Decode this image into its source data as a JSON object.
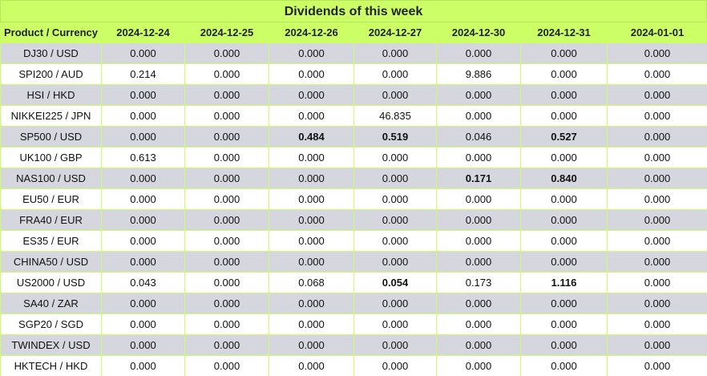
{
  "title": "Dividends of this week",
  "headers": [
    "Product / Currency",
    "2024-12-24",
    "2024-12-25",
    "2024-12-26",
    "2024-12-27",
    "2024-12-30",
    "2024-12-31",
    "2024-01-01"
  ],
  "rows": [
    {
      "product": "DJ30 / USD",
      "values": [
        "0.000",
        "0.000",
        "0.000",
        "0.000",
        "0.000",
        "0.000",
        "0.000"
      ],
      "bold": []
    },
    {
      "product": "SPI200 / AUD",
      "values": [
        "0.214",
        "0.000",
        "0.000",
        "0.000",
        "9.886",
        "0.000",
        "0.000"
      ],
      "bold": []
    },
    {
      "product": "HSI / HKD",
      "values": [
        "0.000",
        "0.000",
        "0.000",
        "0.000",
        "0.000",
        "0.000",
        "0.000"
      ],
      "bold": []
    },
    {
      "product": "NIKKEI225 / JPN",
      "values": [
        "0.000",
        "0.000",
        "0.000",
        "46.835",
        "0.000",
        "0.000",
        "0.000"
      ],
      "bold": []
    },
    {
      "product": "SP500 / USD",
      "values": [
        "0.000",
        "0.000",
        "0.484",
        "0.519",
        "0.046",
        "0.527",
        "0.000"
      ],
      "bold": [
        2,
        3,
        5
      ]
    },
    {
      "product": "UK100 / GBP",
      "values": [
        "0.613",
        "0.000",
        "0.000",
        "0.000",
        "0.000",
        "0.000",
        "0.000"
      ],
      "bold": []
    },
    {
      "product": "NAS100 / USD",
      "values": [
        "0.000",
        "0.000",
        "0.000",
        "0.000",
        "0.171",
        "0.840",
        "0.000"
      ],
      "bold": [
        4,
        5
      ]
    },
    {
      "product": "EU50 / EUR",
      "values": [
        "0.000",
        "0.000",
        "0.000",
        "0.000",
        "0.000",
        "0.000",
        "0.000"
      ],
      "bold": []
    },
    {
      "product": "FRA40 / EUR",
      "values": [
        "0.000",
        "0.000",
        "0.000",
        "0.000",
        "0.000",
        "0.000",
        "0.000"
      ],
      "bold": []
    },
    {
      "product": "ES35 / EUR",
      "values": [
        "0.000",
        "0.000",
        "0.000",
        "0.000",
        "0.000",
        "0.000",
        "0.000"
      ],
      "bold": []
    },
    {
      "product": "CHINA50 / USD",
      "values": [
        "0.000",
        "0.000",
        "0.000",
        "0.000",
        "0.000",
        "0.000",
        "0.000"
      ],
      "bold": []
    },
    {
      "product": "US2000 / USD",
      "values": [
        "0.043",
        "0.000",
        "0.068",
        "0.054",
        "0.173",
        "1.116",
        "0.000"
      ],
      "bold": [
        3,
        5
      ]
    },
    {
      "product": "SA40 / ZAR",
      "values": [
        "0.000",
        "0.000",
        "0.000",
        "0.000",
        "0.000",
        "0.000",
        "0.000"
      ],
      "bold": []
    },
    {
      "product": "SGP20 / SGD",
      "values": [
        "0.000",
        "0.000",
        "0.000",
        "0.000",
        "0.000",
        "0.000",
        "0.000"
      ],
      "bold": []
    },
    {
      "product": "TWINDEX / USD",
      "values": [
        "0.000",
        "0.000",
        "0.000",
        "0.000",
        "0.000",
        "0.000",
        "0.000"
      ],
      "bold": []
    },
    {
      "product": "HKTECH / HKD",
      "values": [
        "0.000",
        "0.000",
        "0.000",
        "0.000",
        "0.000",
        "0.000",
        "0.000"
      ],
      "bold": []
    }
  ],
  "colors": {
    "header_bg": "#ccff66",
    "odd_row_bg": "#d6d6de",
    "even_row_bg": "#ffffff"
  }
}
